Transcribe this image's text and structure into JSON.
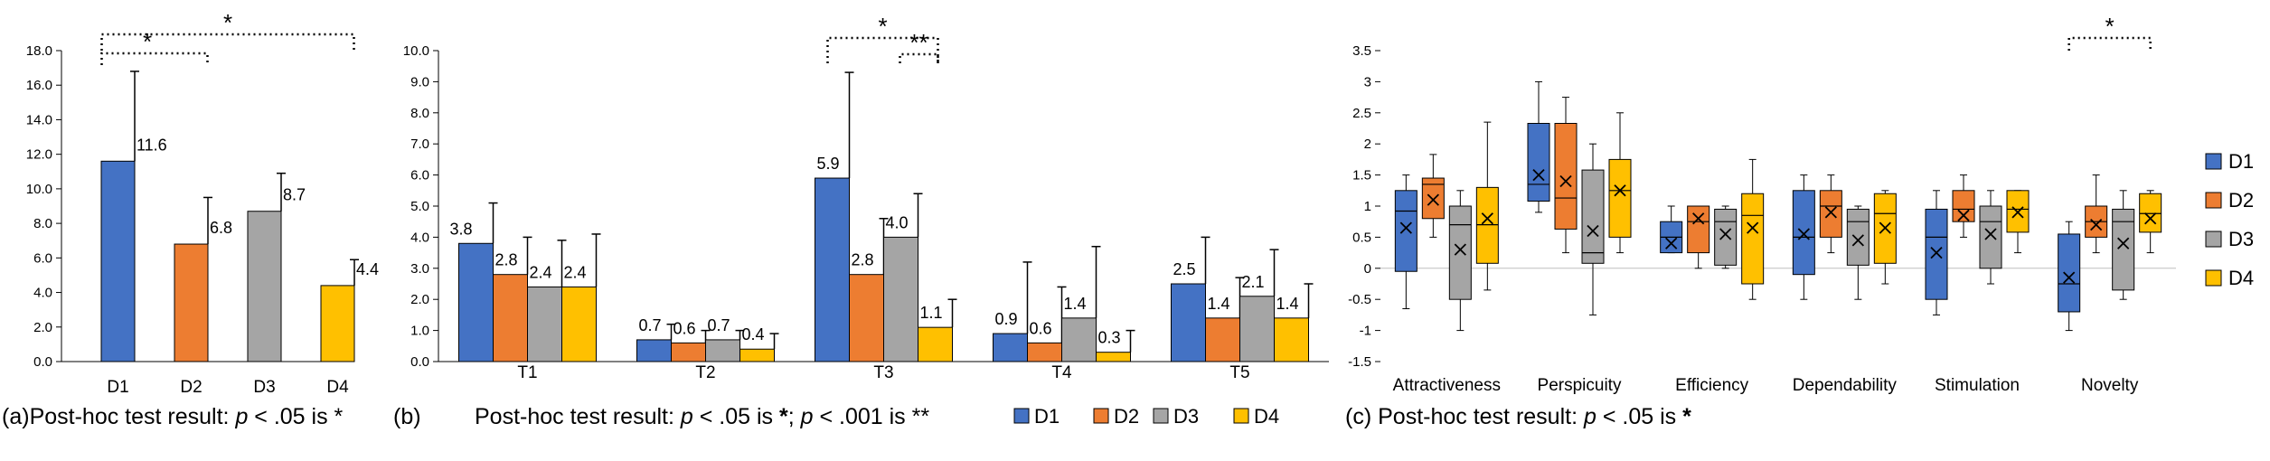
{
  "colors": {
    "D1": "#4472C4",
    "D2": "#ED7D31",
    "D3": "#A5A5A5",
    "D4": "#FFC000"
  },
  "captions": {
    "a": {
      "letter": "(a)",
      "pre": "Post-hoc test result: ",
      "p": "p",
      "mid": " < .05 is *"
    },
    "b": {
      "letter": "(b)",
      "pre": "Post-hoc test result: ",
      "p1": "p",
      "mid1": " < .05 is ",
      "s1": "*",
      "sep": "; ",
      "p2": "p",
      "mid2": " < .001 is **"
    },
    "c": {
      "letter": "(c)",
      "pre": "Post-hoc test result: ",
      "p": "p",
      "mid": " < .05 is ",
      "s": "*"
    }
  },
  "chart_data": [
    {
      "panel": "a",
      "type": "bar",
      "categories": [
        "D1",
        "D2",
        "D3",
        "D4"
      ],
      "values": [
        11.6,
        6.8,
        8.7,
        4.4
      ],
      "value_labels": [
        "11.6",
        "6.8",
        "8.7",
        "4.4"
      ],
      "error_upper": [
        16.8,
        9.5,
        10.9,
        5.9
      ],
      "ylim": [
        0,
        18
      ],
      "yticks": [
        "0.0",
        "2.0",
        "4.0",
        "6.0",
        "8.0",
        "10.0",
        "12.0",
        "14.0",
        "16.0",
        "18.0"
      ],
      "significance": [
        {
          "from": "D1",
          "to": "D2",
          "label": "*"
        },
        {
          "from": "D1",
          "to": "D4",
          "label": "*"
        }
      ]
    },
    {
      "panel": "b",
      "type": "bar",
      "categories": [
        "T1",
        "T2",
        "T3",
        "T4",
        "T5"
      ],
      "series": [
        {
          "name": "D1",
          "values": [
            3.8,
            0.7,
            5.9,
            0.9,
            2.5
          ],
          "labels": [
            "3.8",
            "0.7",
            "5.9",
            "0.9",
            "2.5"
          ],
          "error_upper": [
            5.1,
            1.2,
            9.3,
            3.2,
            4.0
          ]
        },
        {
          "name": "D2",
          "values": [
            2.8,
            0.6,
            2.8,
            0.6,
            1.4
          ],
          "labels": [
            "2.8",
            "0.6",
            "2.8",
            "0.6",
            "1.4"
          ],
          "error_upper": [
            4.0,
            1.0,
            4.6,
            2.4,
            2.7
          ]
        },
        {
          "name": "D3",
          "values": [
            2.4,
            0.7,
            4.0,
            1.4,
            2.1
          ],
          "labels": [
            "2.4",
            "0.7",
            "4.0",
            "1.4",
            "2.1"
          ],
          "error_upper": [
            3.9,
            1.0,
            5.4,
            3.7,
            3.6
          ]
        },
        {
          "name": "D4",
          "values": [
            2.4,
            0.4,
            1.1,
            0.3,
            1.4
          ],
          "labels": [
            "2.4",
            "0.4",
            "1.1",
            "0.3",
            "1.4"
          ],
          "error_upper": [
            4.1,
            0.9,
            2.0,
            1.0,
            2.5
          ]
        }
      ],
      "ylim": [
        0,
        10
      ],
      "yticks": [
        "0.0",
        "1.0",
        "2.0",
        "3.0",
        "4.0",
        "5.0",
        "6.0",
        "7.0",
        "8.0",
        "9.0",
        "10.0"
      ],
      "legend": [
        "D1",
        "D2",
        "D3",
        "D4"
      ],
      "legend_position": "bottom-right",
      "significance": [
        {
          "category": "T3",
          "from": "D1",
          "to": "D4",
          "label": "*"
        },
        {
          "category": "T3",
          "from": "D3",
          "to": "D4",
          "label": "**"
        }
      ]
    },
    {
      "panel": "c",
      "type": "box",
      "categories": [
        "Attractiveness",
        "Perspicuity",
        "Efficiency",
        "Dependability",
        "Stimulation",
        "Novelty"
      ],
      "series": [
        {
          "name": "D1",
          "boxes": [
            {
              "min": -0.65,
              "q1": -0.05,
              "median": 0.92,
              "q3": 1.25,
              "max": 1.5,
              "mean": 0.65
            },
            {
              "min": 0.9,
              "q1": 1.08,
              "median": 1.35,
              "q3": 2.33,
              "max": 3.0,
              "mean": 1.5
            },
            {
              "min": 0.25,
              "q1": 0.25,
              "median": 0.5,
              "q3": 0.75,
              "max": 1.0,
              "mean": 0.4
            },
            {
              "min": -0.5,
              "q1": -0.1,
              "median": 0.5,
              "q3": 1.25,
              "max": 1.5,
              "mean": 0.55
            },
            {
              "min": -0.75,
              "q1": -0.5,
              "median": 0.5,
              "q3": 0.95,
              "max": 1.25,
              "mean": 0.25
            },
            {
              "min": -1.0,
              "q1": -0.7,
              "median": -0.25,
              "q3": 0.55,
              "max": 0.75,
              "mean": -0.15
            }
          ]
        },
        {
          "name": "D2",
          "boxes": [
            {
              "min": 0.5,
              "q1": 0.8,
              "median": 1.35,
              "q3": 1.45,
              "max": 1.83,
              "mean": 1.1
            },
            {
              "min": 0.25,
              "q1": 0.63,
              "median": 1.13,
              "q3": 2.33,
              "max": 2.75,
              "mean": 1.4
            },
            {
              "min": 0.0,
              "q1": 0.25,
              "median": 0.75,
              "q3": 1.0,
              "max": 1.0,
              "mean": 0.8
            },
            {
              "min": 0.25,
              "q1": 0.5,
              "median": 1.0,
              "q3": 1.25,
              "max": 1.5,
              "mean": 0.9
            },
            {
              "min": 0.5,
              "q1": 0.75,
              "median": 0.95,
              "q3": 1.25,
              "max": 1.5,
              "mean": 0.85
            },
            {
              "min": 0.25,
              "q1": 0.5,
              "median": 0.75,
              "q3": 1.0,
              "max": 1.5,
              "mean": 0.7
            }
          ]
        },
        {
          "name": "D3",
          "boxes": [
            {
              "min": -1.0,
              "q1": -0.5,
              "median": 0.7,
              "q3": 1.0,
              "max": 1.25,
              "mean": 0.3
            },
            {
              "min": -0.75,
              "q1": 0.08,
              "median": 0.25,
              "q3": 1.58,
              "max": 2.0,
              "mean": 0.6
            },
            {
              "min": 0.0,
              "q1": 0.05,
              "median": 0.75,
              "q3": 0.95,
              "max": 1.0,
              "mean": 0.55
            },
            {
              "min": -0.5,
              "q1": 0.05,
              "median": 0.75,
              "q3": 0.95,
              "max": 1.0,
              "mean": 0.45
            },
            {
              "min": -0.25,
              "q1": 0.0,
              "median": 0.75,
              "q3": 1.0,
              "max": 1.25,
              "mean": 0.55
            },
            {
              "min": -0.5,
              "q1": -0.35,
              "median": 0.75,
              "q3": 0.95,
              "max": 1.25,
              "mean": 0.4
            }
          ]
        },
        {
          "name": "D4",
          "boxes": [
            {
              "min": -0.35,
              "q1": 0.08,
              "median": 0.7,
              "q3": 1.3,
              "max": 2.35,
              "mean": 0.8
            },
            {
              "min": 0.25,
              "q1": 0.5,
              "median": 1.25,
              "q3": 1.75,
              "max": 2.5,
              "mean": 1.25
            },
            {
              "min": -0.5,
              "q1": -0.25,
              "median": 0.85,
              "q3": 1.2,
              "max": 1.75,
              "mean": 0.65
            },
            {
              "min": -0.25,
              "q1": 0.08,
              "median": 0.88,
              "q3": 1.2,
              "max": 1.25,
              "mean": 0.65
            },
            {
              "min": 0.25,
              "q1": 0.58,
              "median": 0.95,
              "q3": 1.25,
              "max": 1.25,
              "mean": 0.9
            },
            {
              "min": 0.25,
              "q1": 0.58,
              "median": 0.88,
              "q3": 1.2,
              "max": 1.25,
              "mean": 0.8
            }
          ]
        }
      ],
      "ylim": [
        -1.5,
        3.5
      ],
      "yticks": [
        "-1.5",
        "-1",
        "-0.5",
        "0",
        "0.5",
        "1",
        "1.5",
        "2",
        "2.5",
        "3",
        "3.5"
      ],
      "legend": [
        "D1",
        "D2",
        "D3",
        "D4"
      ],
      "legend_position": "right",
      "significance": [
        {
          "category": "Novelty",
          "from": "D1",
          "to": "D4",
          "label": "*"
        }
      ]
    }
  ]
}
